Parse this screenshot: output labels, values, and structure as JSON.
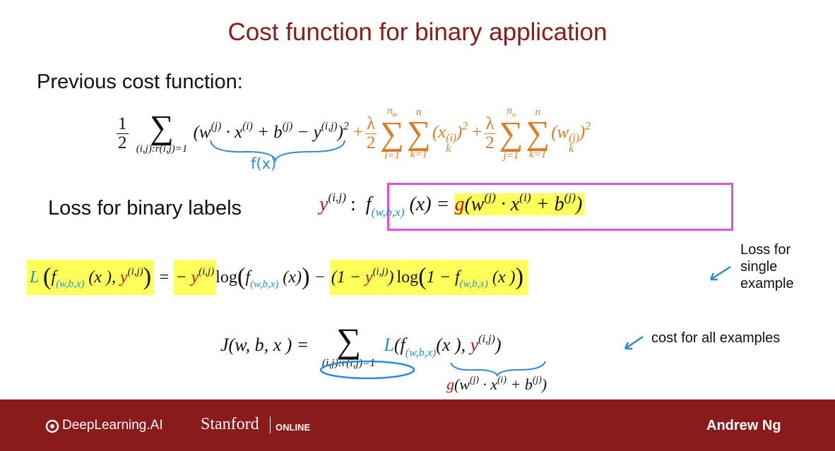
{
  "title": "Cost function for binary application",
  "previous_label": "Previous cost function:",
  "cost_formula": [
    "1",
    "2",
    "∑",
    "(i,j):r(i,j)=1",
    "(w",
    "(j)",
    " · x",
    "(i)",
    " + b",
    "(j)",
    " − y",
    "(i,j)",
    ")",
    "2",
    "+",
    "λ",
    "2",
    "∑",
    "i=1",
    "n",
    "m",
    "∑",
    "k=1",
    "n",
    "(x",
    "(i)",
    "k",
    ")",
    "2",
    "+",
    "λ",
    "2",
    "∑",
    "j=1",
    "n",
    "u",
    "∑",
    "k=1",
    "n",
    "(w",
    "(j)",
    "k",
    ")",
    "2"
  ],
  "handwritten_fx": "f(x)",
  "loss_label": "Loss for binary labels",
  "model_formula": [
    "y",
    "(i,j)",
    ":",
    "f",
    "(w,b,x)",
    " (x) = ",
    "g",
    "(w",
    "(j)",
    " · x",
    "(i)",
    " + b",
    "(j)",
    ")"
  ],
  "loss_formula": [
    "L",
    "(",
    "f",
    "(w,b,x)",
    " (x ), ",
    "y",
    "(i,j)",
    ")",
    " = ",
    "− ",
    "y",
    "(i,j)",
    "log",
    "(",
    "f",
    "(w,b,x)",
    " (x)",
    ")",
    " − ",
    "(1 − ",
    "y",
    "(i,j)",
    ")",
    "log",
    "(",
    "1 − f",
    "(w,b,x)",
    " (x )",
    ")"
  ],
  "note_single": [
    "Loss for",
    "single",
    "example"
  ],
  "total_formula": [
    "J(w, b, x ) = ",
    "∑",
    "(i,j):r(i,j)=1",
    "L",
    "(f",
    "(w,b,x)",
    "(x ), ",
    "y",
    "(i,j)",
    ")",
    "g",
    "(w",
    "(j)",
    " · x",
    "(i)",
    " + b",
    "(j)",
    ")"
  ],
  "note_all": "cost for all examples",
  "footer": {
    "brand": "DeepLearning.AI",
    "university": "Stanford",
    "online": "ONLINE",
    "author": "Andrew Ng"
  }
}
